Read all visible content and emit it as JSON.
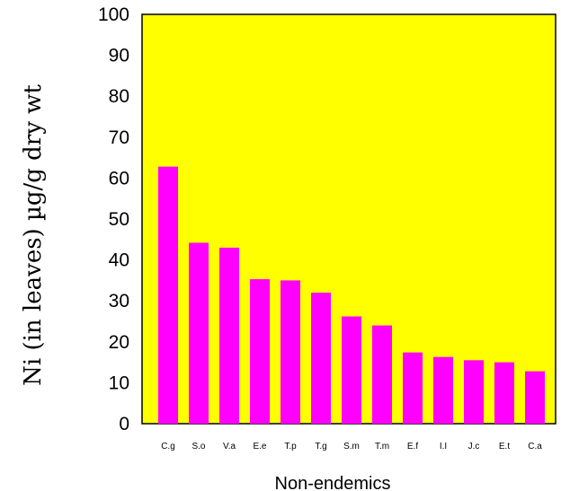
{
  "chart_data": {
    "type": "bar",
    "categories": [
      "C.g",
      "S.o",
      "V.a",
      "E.e",
      "T.p",
      "T.g",
      "S.m",
      "T.m",
      "E.f",
      "I.I",
      "J.c",
      "E.t",
      "C.a"
    ],
    "values": [
      62.8,
      44.2,
      43.0,
      35.3,
      35.0,
      32.0,
      26.2,
      24.0,
      17.4,
      16.3,
      15.5,
      15.0,
      12.8
    ],
    "xlabel": "Non-endemics",
    "ylabel": "Ni (in leaves) µg/g dry wt",
    "ylim": [
      0,
      100
    ],
    "yticks": [
      0,
      10,
      20,
      30,
      40,
      50,
      60,
      70,
      80,
      90,
      100
    ],
    "grid": false,
    "colors": {
      "plot_background": "#ffff00",
      "bar": "#ff00ff",
      "axis": "#000000"
    }
  }
}
